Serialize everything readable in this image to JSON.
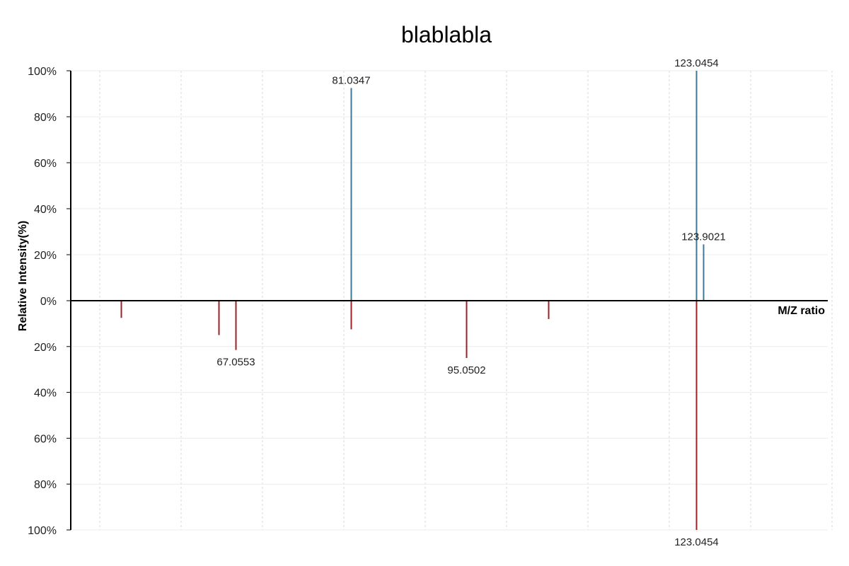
{
  "chart_data": {
    "type": "bar",
    "subtype": "mirror-stem",
    "title": "blablabla",
    "xlabel": "M/Z ratio",
    "ylabel": "Relative Intensity(%)",
    "ylim_top": [
      0,
      100
    ],
    "ylim_bottom": [
      0,
      100
    ],
    "y_ticks_top": [
      "100%",
      "80%",
      "60%",
      "40%",
      "20%",
      "0%"
    ],
    "y_ticks_bottom": [
      "20%",
      "40%",
      "60%",
      "80%",
      "100%"
    ],
    "xlim": [
      47,
      139
    ],
    "grid": true,
    "colors": {
      "top": "#3f7896",
      "bottom": "#9b2226",
      "axis": "#000000"
    },
    "series": [
      {
        "position": "top",
        "values": [
          {
            "mz": 81.0347,
            "intensity": 92.5,
            "label": "81.0347"
          },
          {
            "mz": 123.0454,
            "intensity": 100,
            "label": "123.0454"
          },
          {
            "mz": 123.9021,
            "intensity": 24.5,
            "label": "123.9021"
          }
        ]
      },
      {
        "position": "bottom",
        "values": [
          {
            "mz": 53.1,
            "intensity": 7.5,
            "label": ""
          },
          {
            "mz": 65.0,
            "intensity": 15,
            "label": ""
          },
          {
            "mz": 67.0553,
            "intensity": 21.5,
            "label": "67.0553"
          },
          {
            "mz": 81.0347,
            "intensity": 12.5,
            "label": ""
          },
          {
            "mz": 95.0502,
            "intensity": 25,
            "label": "95.0502"
          },
          {
            "mz": 105.0,
            "intensity": 8,
            "label": ""
          },
          {
            "mz": 123.0454,
            "intensity": 100,
            "label": "123.0454"
          }
        ]
      }
    ]
  }
}
